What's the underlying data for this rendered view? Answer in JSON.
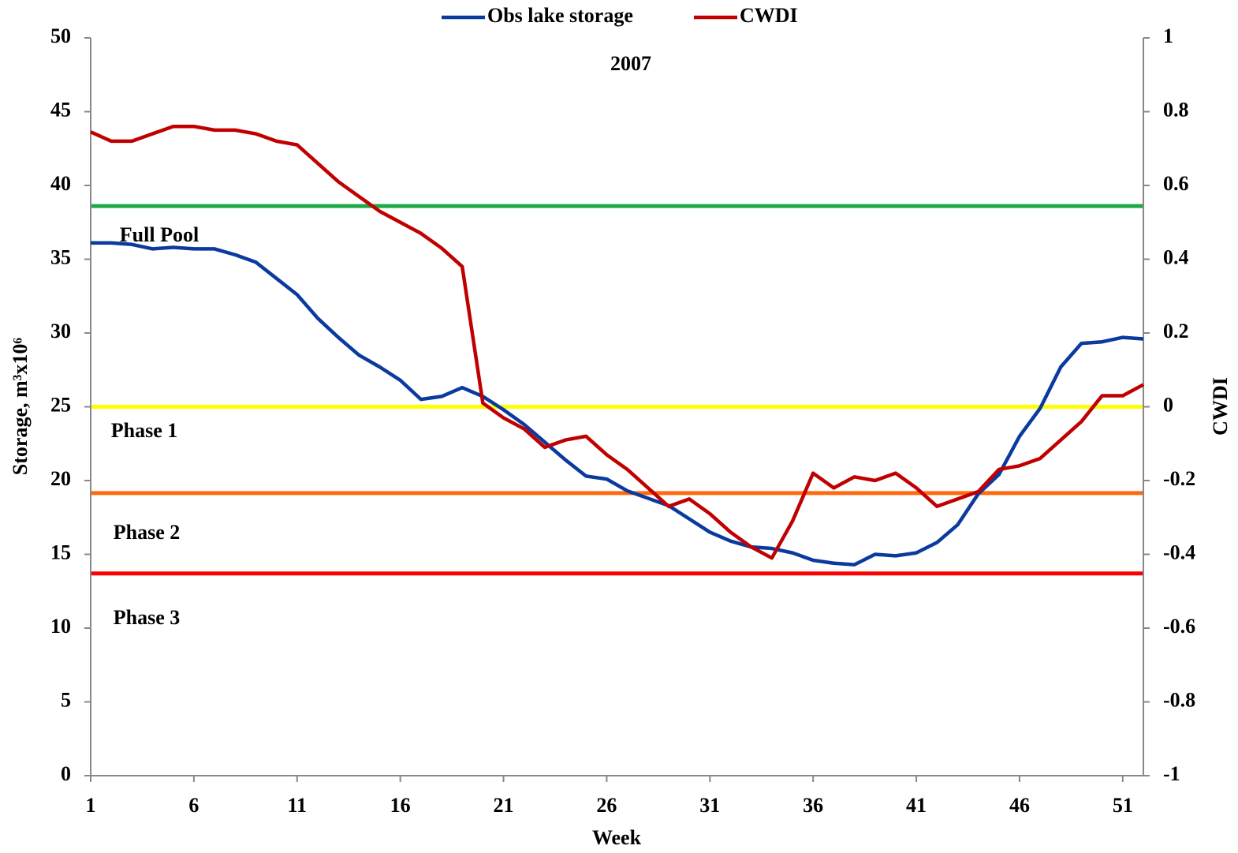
{
  "chart_data": {
    "type": "line",
    "title": "2007",
    "xlabel": "Week",
    "ylabel": "Storage, m³x10⁶",
    "y2label": "CWDI",
    "x": [
      1,
      2,
      3,
      4,
      5,
      6,
      7,
      8,
      9,
      10,
      11,
      12,
      13,
      14,
      15,
      16,
      17,
      18,
      19,
      20,
      21,
      22,
      23,
      24,
      25,
      26,
      27,
      28,
      29,
      30,
      31,
      32,
      33,
      34,
      35,
      36,
      37,
      38,
      39,
      40,
      41,
      42,
      43,
      44,
      45,
      46,
      47,
      48,
      49,
      50,
      51,
      52
    ],
    "xlim": [
      1,
      52
    ],
    "xticks": [
      1,
      6,
      11,
      16,
      21,
      26,
      31,
      36,
      41,
      46,
      51
    ],
    "ylim": [
      0,
      50
    ],
    "yticks": [
      0,
      5,
      10,
      15,
      20,
      25,
      30,
      35,
      40,
      45,
      50
    ],
    "y2lim": [
      -1,
      1
    ],
    "y2ticks": [
      -1,
      -0.8,
      -0.6,
      -0.4,
      -0.2,
      0,
      0.2,
      0.4,
      0.6,
      0.8,
      1
    ],
    "series": [
      {
        "name": "Obs lake storage",
        "color": "#0b3a9e",
        "values": [
          36.1,
          36.1,
          36.0,
          35.7,
          35.8,
          35.7,
          35.7,
          35.3,
          34.8,
          33.7,
          32.6,
          31.0,
          29.7,
          28.5,
          27.7,
          26.8,
          25.5,
          25.7,
          26.3,
          25.7,
          24.8,
          23.8,
          22.6,
          21.4,
          20.3,
          20.1,
          19.3,
          18.8,
          18.3,
          17.4,
          16.5,
          15.9,
          15.5,
          15.4,
          15.1,
          14.6,
          14.4,
          14.3,
          15.0,
          14.9,
          15.1,
          15.8,
          17.0,
          19.1,
          20.4,
          23.0,
          24.9,
          27.7,
          29.3,
          29.4,
          29.7,
          29.6
        ]
      },
      {
        "name": "CWDI",
        "color": "#c00000",
        "axis": "y2",
        "values": [
          0.745,
          0.72,
          0.72,
          0.74,
          0.76,
          0.76,
          0.75,
          0.75,
          0.74,
          0.72,
          0.71,
          0.66,
          0.61,
          0.57,
          0.53,
          0.5,
          0.47,
          0.43,
          0.38,
          0.01,
          -0.03,
          -0.06,
          -0.11,
          -0.09,
          -0.08,
          -0.13,
          -0.17,
          -0.22,
          -0.27,
          -0.25,
          -0.29,
          -0.34,
          -0.38,
          -0.41,
          -0.31,
          -0.18,
          -0.22,
          -0.19,
          -0.2,
          -0.18,
          -0.22,
          -0.27,
          -0.25,
          -0.23,
          -0.17,
          -0.16,
          -0.14,
          -0.09,
          -0.04,
          0.03,
          0.03,
          0.06
        ]
      }
    ],
    "reference_lines": [
      {
        "value": 38.6,
        "color": "#1faa4a"
      },
      {
        "value": 25.0,
        "color": "#ffff00"
      },
      {
        "value": 19.15,
        "color": "#ff6a10"
      },
      {
        "value": 13.7,
        "color": "#ff0000"
      }
    ],
    "annotations": [
      "Full Pool",
      "Phase 1",
      "Phase 2",
      "Phase 3"
    ]
  }
}
